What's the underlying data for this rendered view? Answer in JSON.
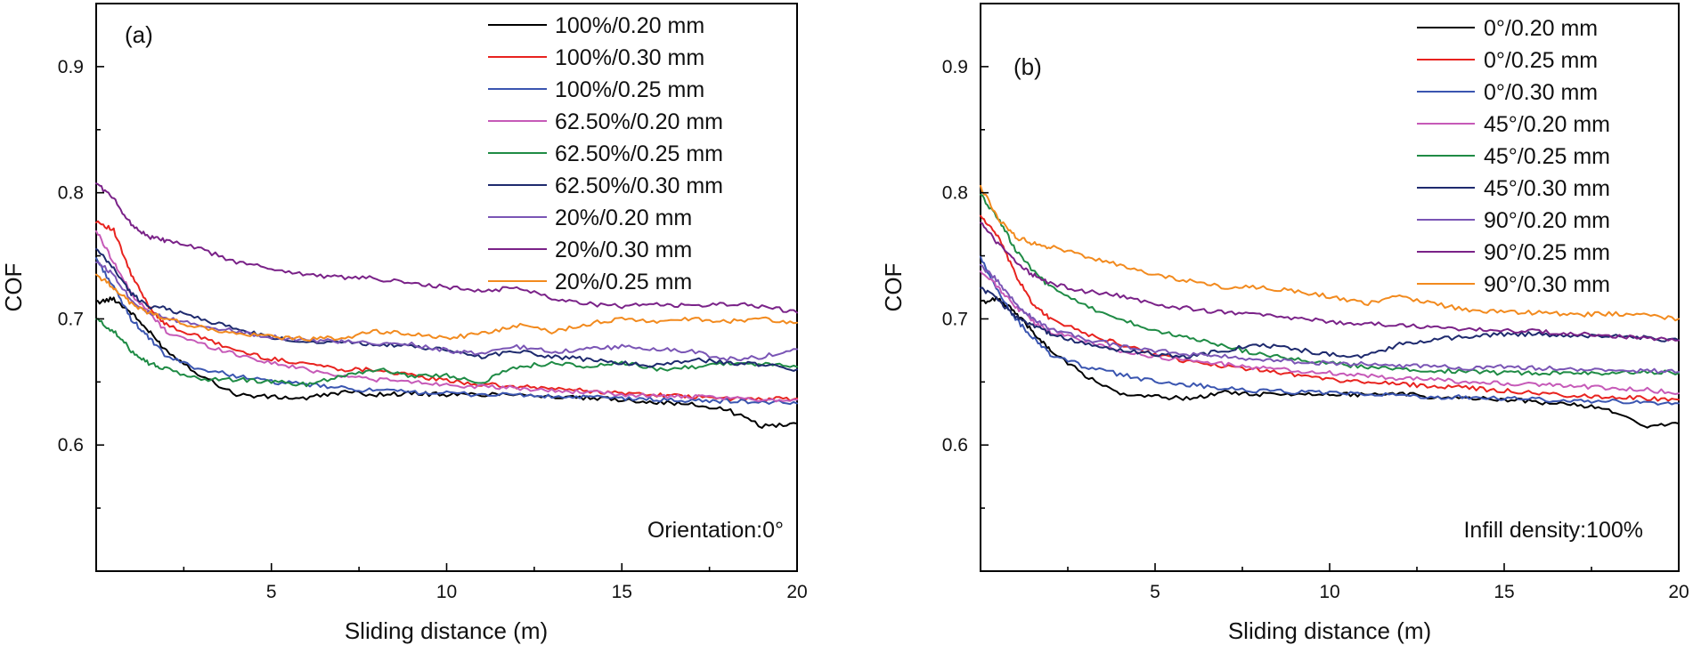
{
  "chart_data": [
    {
      "type": "line",
      "panel_label": "(a)",
      "annotation": "Orientation:0°",
      "xlabel": "Sliding distance (m)",
      "ylabel": "COF",
      "xlim": [
        0,
        20
      ],
      "ylim": [
        0.5,
        0.95
      ],
      "x_ticks": [
        5,
        10,
        15,
        20
      ],
      "y_ticks": [
        0.6,
        0.7,
        0.8,
        0.9
      ],
      "x": [
        0,
        0.5,
        1,
        1.5,
        2,
        3,
        4,
        5,
        6,
        7,
        8,
        9,
        10,
        11,
        12,
        13,
        14,
        15,
        16,
        17,
        18,
        19,
        20
      ],
      "legend_position": "top-right",
      "series": [
        {
          "name": "100%/0.20 mm",
          "color": "#000000",
          "values": [
            0.713,
            0.716,
            0.705,
            0.69,
            0.675,
            0.655,
            0.64,
            0.638,
            0.637,
            0.642,
            0.64,
            0.641,
            0.64,
            0.64,
            0.641,
            0.638,
            0.637,
            0.636,
            0.634,
            0.632,
            0.628,
            0.615,
            0.617
          ]
        },
        {
          "name": "100%/0.30 mm",
          "color": "#e8231f",
          "values": [
            0.778,
            0.77,
            0.735,
            0.71,
            0.695,
            0.685,
            0.675,
            0.668,
            0.665,
            0.66,
            0.66,
            0.655,
            0.651,
            0.648,
            0.646,
            0.645,
            0.643,
            0.641,
            0.64,
            0.638,
            0.637,
            0.636,
            0.637
          ]
        },
        {
          "name": "100%/0.25 mm",
          "color": "#3a55b0",
          "values": [
            0.748,
            0.725,
            0.7,
            0.685,
            0.67,
            0.66,
            0.655,
            0.65,
            0.648,
            0.645,
            0.643,
            0.642,
            0.641,
            0.64,
            0.64,
            0.638,
            0.638,
            0.637,
            0.636,
            0.635,
            0.635,
            0.634,
            0.633
          ]
        },
        {
          "name": "62.50%/0.20 mm",
          "color": "#c65ab8",
          "values": [
            0.77,
            0.745,
            0.72,
            0.705,
            0.69,
            0.68,
            0.672,
            0.665,
            0.66,
            0.655,
            0.652,
            0.65,
            0.648,
            0.646,
            0.645,
            0.643,
            0.642,
            0.64,
            0.639,
            0.638,
            0.637,
            0.636,
            0.636
          ]
        },
        {
          "name": "62.50%/0.25 mm",
          "color": "#1f8b45",
          "values": [
            0.7,
            0.69,
            0.675,
            0.665,
            0.66,
            0.652,
            0.652,
            0.65,
            0.648,
            0.655,
            0.66,
            0.655,
            0.655,
            0.65,
            0.662,
            0.665,
            0.662,
            0.665,
            0.66,
            0.662,
            0.665,
            0.664,
            0.662
          ]
        },
        {
          "name": "62.50%/0.30 mm",
          "color": "#1e2a6e",
          "values": [
            0.755,
            0.74,
            0.72,
            0.71,
            0.708,
            0.7,
            0.692,
            0.685,
            0.682,
            0.682,
            0.68,
            0.678,
            0.675,
            0.67,
            0.675,
            0.67,
            0.668,
            0.665,
            0.663,
            0.668,
            0.665,
            0.664,
            0.66
          ]
        },
        {
          "name": "20%/0.20 mm",
          "color": "#7a55b5",
          "values": [
            0.746,
            0.735,
            0.715,
            0.705,
            0.7,
            0.695,
            0.69,
            0.686,
            0.683,
            0.682,
            0.68,
            0.68,
            0.675,
            0.672,
            0.678,
            0.674,
            0.676,
            0.678,
            0.676,
            0.674,
            0.668,
            0.67,
            0.676
          ]
        },
        {
          "name": "20%/0.30 mm",
          "color": "#7a2288",
          "values": [
            0.808,
            0.795,
            0.775,
            0.765,
            0.762,
            0.755,
            0.745,
            0.74,
            0.735,
            0.733,
            0.732,
            0.728,
            0.725,
            0.722,
            0.725,
            0.717,
            0.712,
            0.71,
            0.712,
            0.71,
            0.712,
            0.71,
            0.705
          ]
        },
        {
          "name": "20%/0.25 mm",
          "color": "#f28a1e",
          "values": [
            0.735,
            0.725,
            0.712,
            0.705,
            0.7,
            0.693,
            0.688,
            0.686,
            0.684,
            0.685,
            0.69,
            0.688,
            0.685,
            0.688,
            0.695,
            0.69,
            0.696,
            0.7,
            0.698,
            0.7,
            0.698,
            0.7,
            0.697
          ]
        }
      ]
    },
    {
      "type": "line",
      "panel_label": "(b)",
      "annotation": "Infill density:100%",
      "xlabel": "Sliding distance (m)",
      "ylabel": "COF",
      "xlim": [
        0,
        20
      ],
      "ylim": [
        0.5,
        0.95
      ],
      "x_ticks": [
        5,
        10,
        15,
        20
      ],
      "y_ticks": [
        0.6,
        0.7,
        0.8,
        0.9
      ],
      "x": [
        0,
        0.5,
        1,
        1.5,
        2,
        3,
        4,
        5,
        6,
        7,
        8,
        9,
        10,
        11,
        12,
        13,
        14,
        15,
        16,
        17,
        18,
        19,
        20
      ],
      "legend_position": "top-right",
      "series": [
        {
          "name": "0°/0.20 mm",
          "color": "#000000",
          "values": [
            0.713,
            0.716,
            0.705,
            0.69,
            0.675,
            0.655,
            0.64,
            0.638,
            0.637,
            0.642,
            0.64,
            0.641,
            0.64,
            0.64,
            0.641,
            0.638,
            0.637,
            0.636,
            0.634,
            0.632,
            0.628,
            0.615,
            0.617
          ]
        },
        {
          "name": "0°/0.25 mm",
          "color": "#e8231f",
          "values": [
            0.782,
            0.765,
            0.735,
            0.712,
            0.7,
            0.688,
            0.68,
            0.672,
            0.666,
            0.662,
            0.66,
            0.656,
            0.652,
            0.65,
            0.648,
            0.647,
            0.645,
            0.643,
            0.641,
            0.639,
            0.638,
            0.637,
            0.636
          ]
        },
        {
          "name": "0°/0.30 mm",
          "color": "#3a55b0",
          "values": [
            0.748,
            0.722,
            0.7,
            0.685,
            0.672,
            0.662,
            0.656,
            0.65,
            0.648,
            0.645,
            0.643,
            0.642,
            0.641,
            0.64,
            0.64,
            0.638,
            0.638,
            0.637,
            0.636,
            0.635,
            0.635,
            0.634,
            0.633
          ]
        },
        {
          "name": "45°/0.20 mm",
          "color": "#c65ab8",
          "values": [
            0.738,
            0.725,
            0.71,
            0.698,
            0.69,
            0.682,
            0.675,
            0.67,
            0.667,
            0.664,
            0.661,
            0.659,
            0.657,
            0.655,
            0.653,
            0.652,
            0.65,
            0.649,
            0.648,
            0.647,
            0.645,
            0.644,
            0.641
          ]
        },
        {
          "name": "45°/0.25 mm",
          "color": "#1f8b45",
          "values": [
            0.798,
            0.78,
            0.755,
            0.738,
            0.725,
            0.71,
            0.7,
            0.69,
            0.685,
            0.678,
            0.672,
            0.668,
            0.665,
            0.662,
            0.66,
            0.659,
            0.658,
            0.657,
            0.657,
            0.658,
            0.657,
            0.658,
            0.657
          ]
        },
        {
          "name": "45°/0.30 mm",
          "color": "#1e2a6e",
          "values": [
            0.725,
            0.715,
            0.702,
            0.695,
            0.688,
            0.68,
            0.675,
            0.672,
            0.67,
            0.675,
            0.68,
            0.676,
            0.672,
            0.67,
            0.68,
            0.684,
            0.686,
            0.688,
            0.688,
            0.686,
            0.687,
            0.685,
            0.683
          ]
        },
        {
          "name": "90°/0.20 mm",
          "color": "#7a55b5",
          "values": [
            0.742,
            0.73,
            0.712,
            0.7,
            0.692,
            0.684,
            0.679,
            0.675,
            0.672,
            0.67,
            0.668,
            0.666,
            0.665,
            0.664,
            0.662,
            0.663,
            0.661,
            0.662,
            0.661,
            0.66,
            0.659,
            0.659,
            0.658
          ]
        },
        {
          "name": "90°/0.25 mm",
          "color": "#7a2288",
          "values": [
            0.776,
            0.76,
            0.745,
            0.735,
            0.728,
            0.722,
            0.718,
            0.712,
            0.708,
            0.705,
            0.703,
            0.7,
            0.698,
            0.696,
            0.695,
            0.693,
            0.692,
            0.691,
            0.69,
            0.688,
            0.687,
            0.685,
            0.683
          ]
        },
        {
          "name": "90°/0.30 mm",
          "color": "#f28a1e",
          "values": [
            0.805,
            0.78,
            0.765,
            0.76,
            0.757,
            0.75,
            0.742,
            0.735,
            0.73,
            0.725,
            0.725,
            0.722,
            0.718,
            0.712,
            0.718,
            0.712,
            0.707,
            0.705,
            0.705,
            0.703,
            0.704,
            0.703,
            0.7
          ]
        }
      ]
    }
  ]
}
